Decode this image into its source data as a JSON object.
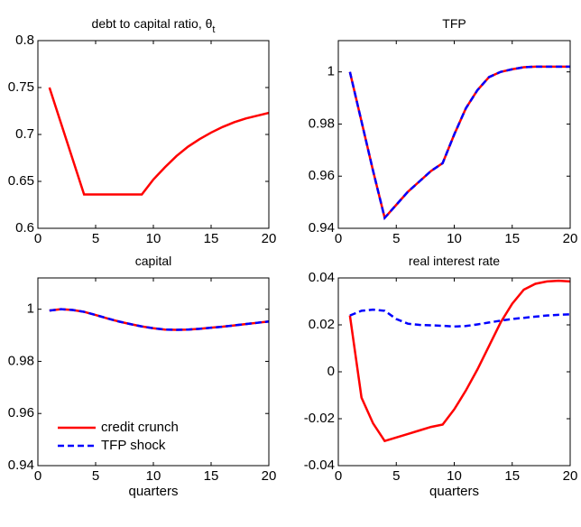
{
  "chart_data": [
    {
      "type": "line",
      "title": "debt to capital ratio, θ",
      "title_subscript": "t",
      "x": [
        1,
        2,
        3,
        4,
        5,
        6,
        7,
        8,
        9,
        10,
        11,
        12,
        13,
        14,
        15,
        16,
        17,
        18,
        19,
        20
      ],
      "series": [
        {
          "color": "#ff0000",
          "dash": "solid",
          "values": [
            0.75,
            0.712,
            0.674,
            0.636,
            0.636,
            0.636,
            0.636,
            0.636,
            0.636,
            0.652,
            0.665,
            0.677,
            0.687,
            0.695,
            0.702,
            0.708,
            0.713,
            0.717,
            0.72,
            0.723
          ]
        }
      ],
      "xlim": [
        0,
        20
      ],
      "xticks": [
        0,
        5,
        10,
        15,
        20
      ],
      "ylim": [
        0.6,
        0.8
      ],
      "yticks": [
        0.6,
        0.65,
        0.7,
        0.75,
        0.8
      ]
    },
    {
      "type": "line",
      "title": "TFP",
      "x": [
        1,
        2,
        3,
        4,
        5,
        6,
        7,
        8,
        9,
        10,
        11,
        12,
        13,
        14,
        15,
        16,
        17,
        18,
        19,
        20
      ],
      "series": [
        {
          "color": "#ff0000",
          "dash": "solid",
          "values": [
            1.0,
            0.981,
            0.962,
            0.944,
            0.949,
            0.954,
            0.958,
            0.962,
            0.965,
            0.976,
            0.986,
            0.993,
            0.998,
            1.0,
            1.001,
            1.0018,
            1.002,
            1.002,
            1.002,
            1.002
          ]
        },
        {
          "color": "#0000ff",
          "dash": "dashed",
          "values": [
            1.0,
            0.981,
            0.962,
            0.944,
            0.949,
            0.954,
            0.958,
            0.962,
            0.965,
            0.976,
            0.986,
            0.993,
            0.998,
            1.0,
            1.001,
            1.0018,
            1.002,
            1.002,
            1.002,
            1.002
          ]
        }
      ],
      "xlim": [
        0,
        20
      ],
      "xticks": [
        0,
        5,
        10,
        15,
        20
      ],
      "ylim": [
        0.94,
        1.012
      ],
      "yticks": [
        0.94,
        0.96,
        0.98,
        1
      ]
    },
    {
      "type": "line",
      "title": "capital",
      "xlabel": "quarters",
      "legend": "lower left",
      "x": [
        1,
        2,
        3,
        4,
        5,
        6,
        7,
        8,
        9,
        10,
        11,
        12,
        13,
        14,
        15,
        16,
        17,
        18,
        19,
        20
      ],
      "series": [
        {
          "name": "credit crunch",
          "color": "#ff0000",
          "dash": "solid",
          "values": [
            0.9995,
            1.0,
            0.9997,
            0.999,
            0.9978,
            0.9965,
            0.9953,
            0.9943,
            0.9934,
            0.9927,
            0.9922,
            0.9921,
            0.9922,
            0.9925,
            0.9929,
            0.9933,
            0.9938,
            0.9943,
            0.9948,
            0.9953
          ]
        },
        {
          "name": "TFP shock",
          "color": "#0000ff",
          "dash": "dashed",
          "values": [
            0.9995,
            1.0,
            0.9997,
            0.999,
            0.9978,
            0.9965,
            0.9953,
            0.9943,
            0.9934,
            0.9927,
            0.9922,
            0.9921,
            0.9922,
            0.9925,
            0.9929,
            0.9933,
            0.9938,
            0.9943,
            0.9948,
            0.9953
          ]
        }
      ],
      "xlim": [
        0,
        20
      ],
      "xticks": [
        0,
        5,
        10,
        15,
        20
      ],
      "ylim": [
        0.94,
        1.012
      ],
      "yticks": [
        0.94,
        0.96,
        0.98,
        1
      ]
    },
    {
      "type": "line",
      "title": "real interest rate",
      "xlabel": "quarters",
      "x": [
        1,
        2,
        3,
        4,
        5,
        6,
        7,
        8,
        9,
        10,
        11,
        12,
        13,
        14,
        15,
        16,
        17,
        18,
        19,
        20
      ],
      "series": [
        {
          "color": "#ff0000",
          "dash": "solid",
          "values": [
            0.024,
            -0.011,
            -0.022,
            -0.0295,
            -0.028,
            -0.0265,
            -0.025,
            -0.0235,
            -0.0225,
            -0.016,
            -0.008,
            0.001,
            0.011,
            0.021,
            0.029,
            0.035,
            0.0375,
            0.0385,
            0.0388,
            0.0385
          ]
        },
        {
          "color": "#0000ff",
          "dash": "dashed",
          "values": [
            0.024,
            0.026,
            0.0265,
            0.026,
            0.0225,
            0.0205,
            0.02,
            0.0198,
            0.0196,
            0.0193,
            0.0195,
            0.0202,
            0.021,
            0.0218,
            0.0225,
            0.023,
            0.0235,
            0.024,
            0.0243,
            0.0245
          ]
        }
      ],
      "xlim": [
        0,
        20
      ],
      "xticks": [
        0,
        5,
        10,
        15,
        20
      ],
      "ylim": [
        -0.04,
        0.04
      ],
      "yticks": [
        -0.04,
        -0.02,
        0,
        0.02,
        0.04
      ]
    }
  ]
}
